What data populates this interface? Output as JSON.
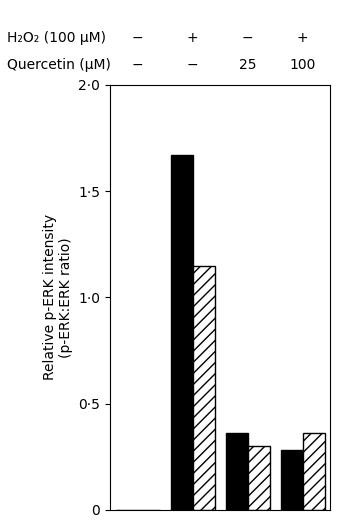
{
  "chart_data": {
    "type": "bar",
    "categories": [
      null,
      null,
      null,
      null
    ],
    "series": [
      {
        "color": "#000000",
        "values": [
          0.0,
          1.67,
          0.36,
          0.28
        ]
      },
      {
        "color": "#ffffff",
        "values": [
          0.0,
          1.15,
          0.3,
          0.36
        ]
      }
    ],
    "ylabel": "Relative p-ERK intensity\n(p-ERK:ERK ratio)",
    "ylim": [
      0,
      2.0
    ],
    "yticks": [
      0,
      {
        "value": 0.5,
        "label": "0·5"
      },
      {
        "value": 1.0,
        "label": "1·0"
      },
      {
        "value": 1.5,
        "label": "1·5"
      },
      {
        "value": 2.0,
        "label": "2·0"
      }
    ],
    "annotations": [
      {
        "text": "H₂O₂ (100 μM)",
        "labels": [
          "−",
          "+",
          "−",
          "+"
        ]
      },
      {
        "text": "Quercetin (μM)",
        "labels": [
          "−",
          "−",
          "25",
          "100"
        ]
      }
    ]
  }
}
